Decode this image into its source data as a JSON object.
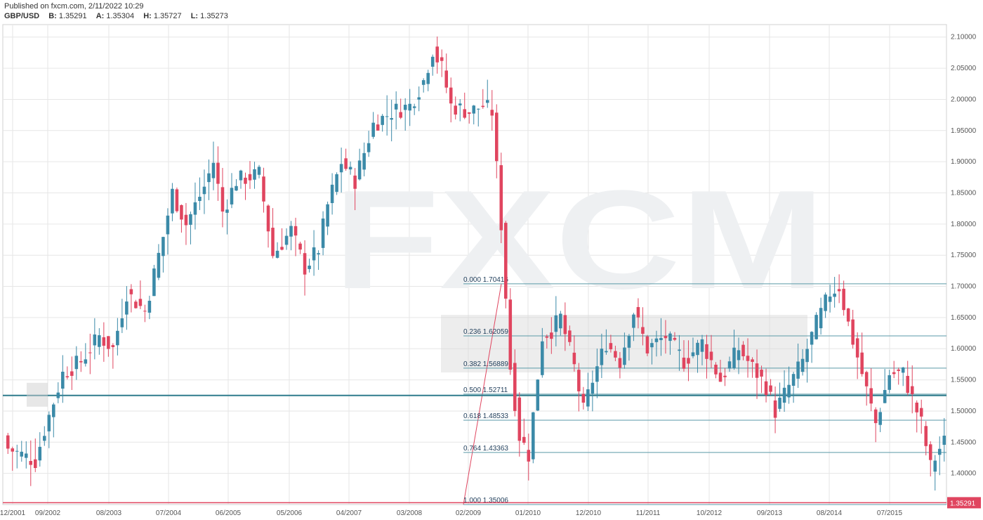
{
  "header": {
    "published": "Published on fxcm.com, 2/11/2022 10:29",
    "symbol": "GBP/USD",
    "b_label": "B:",
    "b_value": "1.35291",
    "a_label": "A:",
    "a_value": "1.35304",
    "h_label": "H:",
    "h_value": "1.35727",
    "l_label": "L:",
    "l_value": "1.35273"
  },
  "watermark": "FXCM",
  "colors": {
    "up": "#3b8aa8",
    "down": "#e0455f",
    "fib": "#5a9aa8",
    "grid": "#e6e6e6",
    "price": "#e0455f"
  },
  "chart_data": {
    "type": "candlestick",
    "ylim": [
      1.35,
      2.12
    ],
    "yticks": [
      "1.40000",
      "1.45000",
      "1.50000",
      "1.55000",
      "1.60000",
      "1.65000",
      "1.70000",
      "1.75000",
      "1.80000",
      "1.85000",
      "1.90000",
      "1.95000",
      "2.00000",
      "2.05000",
      "2.10000"
    ],
    "xticks": [
      "12/2001",
      "09/2002",
      "08/2003",
      "07/2004",
      "06/2005",
      "05/2006",
      "04/2007",
      "03/2008",
      "02/2009",
      "01/2010",
      "12/2010",
      "11/2011",
      "10/2012",
      "09/2013",
      "08/2014",
      "07/2015"
    ],
    "current_price": 1.35291,
    "current_price_label": "1.35291",
    "horizontal_level": 1.525,
    "fibonacci": {
      "high": 1.70416,
      "low": 1.35006,
      "levels": [
        {
          "label": "0.000 1.70416",
          "value": 1.70416
        },
        {
          "label": "0.236 1.62059",
          "value": 1.62059
        },
        {
          "label": "0.382 1.56889",
          "value": 1.56889
        },
        {
          "label": "0.500 1.52711",
          "value": 1.52711
        },
        {
          "label": "0.618 1.48533",
          "value": 1.48533
        },
        {
          "label": "0.764 1.43363",
          "value": 1.43363
        },
        {
          "label": "1.000 1.35006",
          "value": 1.35006
        }
      ]
    },
    "anchors": [
      [
        0,
        1.44
      ],
      [
        6,
        1.42
      ],
      [
        8,
        1.47
      ],
      [
        12,
        1.56
      ],
      [
        16,
        1.58
      ],
      [
        20,
        1.62
      ],
      [
        23,
        1.6
      ],
      [
        26,
        1.69
      ],
      [
        30,
        1.66
      ],
      [
        34,
        1.78
      ],
      [
        36,
        1.85
      ],
      [
        39,
        1.8
      ],
      [
        43,
        1.86
      ],
      [
        45,
        1.9
      ],
      [
        47,
        1.82
      ],
      [
        50,
        1.87
      ],
      [
        55,
        1.88
      ],
      [
        58,
        1.75
      ],
      [
        62,
        1.79
      ],
      [
        65,
        1.73
      ],
      [
        68,
        1.76
      ],
      [
        70,
        1.83
      ],
      [
        73,
        1.9
      ],
      [
        76,
        1.87
      ],
      [
        80,
        1.96
      ],
      [
        84,
        1.98
      ],
      [
        88,
        1.99
      ],
      [
        91,
        2.03
      ],
      [
        93,
        2.08
      ],
      [
        95,
        2.05
      ],
      [
        97,
        1.99
      ],
      [
        101,
        1.98
      ],
      [
        104,
        1.99
      ],
      [
        106,
        1.98
      ],
      [
        108,
        1.8
      ],
      [
        110,
        1.57
      ],
      [
        112,
        1.46
      ],
      [
        114,
        1.43
      ],
      [
        117,
        1.62
      ],
      [
        119,
        1.63
      ],
      [
        121,
        1.65
      ],
      [
        124,
        1.57
      ],
      [
        126,
        1.5
      ],
      [
        128,
        1.55
      ],
      [
        131,
        1.61
      ],
      [
        134,
        1.58
      ],
      [
        137,
        1.66
      ],
      [
        140,
        1.6
      ],
      [
        144,
        1.62
      ],
      [
        148,
        1.58
      ],
      [
        152,
        1.61
      ],
      [
        156,
        1.55
      ],
      [
        160,
        1.6
      ],
      [
        162,
        1.58
      ],
      [
        166,
        1.54
      ],
      [
        168,
        1.5
      ],
      [
        171,
        1.54
      ],
      [
        174,
        1.58
      ],
      [
        177,
        1.64
      ],
      [
        180,
        1.69
      ],
      [
        182,
        1.7
      ],
      [
        184,
        1.64
      ],
      [
        187,
        1.56
      ],
      [
        190,
        1.48
      ],
      [
        193,
        1.56
      ],
      [
        196,
        1.56
      ],
      [
        200,
        1.48
      ],
      [
        202,
        1.41
      ],
      [
        204,
        1.44
      ],
      [
        205,
        1.45
      ]
    ]
  }
}
